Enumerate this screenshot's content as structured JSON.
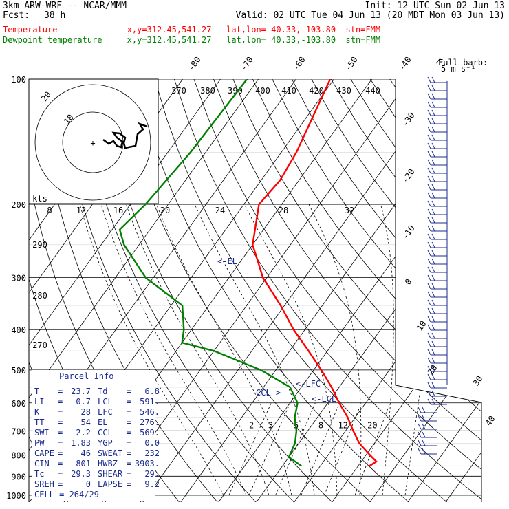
{
  "header": {
    "title": "3km ARW-WRF -- NCAR/MMM",
    "fcst_label": "Fcst:",
    "fcst_value": "38 h",
    "init": "Init: 12 UTC Sun 02 Jun 13",
    "valid": "Valid: 02 UTC Tue 04 Jun 13 (20 MDT Mon 03 Jun 13)",
    "temp_line": "Temperature              x,y=312.45,541.27   lat,lon= 40.33,-103.80  stn=FMM",
    "dew_line": "Dewpoint temperature     x,y=312.45,541.27   lat,lon= 40.33,-103.80  stn=FMM"
  },
  "colors": {
    "temperature": "#ff0000",
    "dewpoint": "#008000",
    "annotation": "#1b2b8f",
    "axis": "#000000"
  },
  "chart_data": {
    "type": "line",
    "title": "",
    "ylabel": "",
    "y_scale": "log-pressure",
    "pressure_ticks": [
      "100",
      "200",
      "300",
      "400",
      "500",
      "600",
      "700",
      "800",
      "900",
      "1000"
    ],
    "isotherm_labels": [
      "-80",
      "-70",
      "-60",
      "-50",
      "-40",
      "-30",
      "-20",
      "-10",
      "0",
      "10",
      "20",
      "30",
      "40"
    ],
    "theta_e_labels": [
      "370",
      "380",
      "390",
      "400",
      "410",
      "420",
      "430",
      "440"
    ],
    "theta_labels": [
      "290",
      "280",
      "270"
    ],
    "mixing_ratio_labels": [
      "2",
      "3",
      "5",
      "8",
      "12",
      "20"
    ],
    "series": [
      {
        "name": "Temperature",
        "color": "#ff0000",
        "points": [
          [
            100,
            -61
          ],
          [
            150,
            -56
          ],
          [
            175,
            -55
          ],
          [
            200,
            -56
          ],
          [
            250,
            -50
          ],
          [
            300,
            -41
          ],
          [
            350,
            -31
          ],
          [
            400,
            -23
          ],
          [
            450,
            -15
          ],
          [
            500,
            -8
          ],
          [
            550,
            -2
          ],
          [
            600,
            3
          ],
          [
            650,
            8
          ],
          [
            700,
            12
          ],
          [
            750,
            16
          ],
          [
            800,
            21
          ],
          [
            830,
            24
          ],
          [
            850,
            23
          ]
        ]
      },
      {
        "name": "Dewpoint temperature",
        "color": "#008000",
        "points": [
          [
            100,
            -83
          ],
          [
            150,
            -84
          ],
          [
            200,
            -86
          ],
          [
            230,
            -88
          ],
          [
            250,
            -84
          ],
          [
            300,
            -72
          ],
          [
            350,
            -57
          ],
          [
            400,
            -52
          ],
          [
            430,
            -50
          ],
          [
            450,
            -40
          ],
          [
            500,
            -24
          ],
          [
            550,
            -13
          ],
          [
            600,
            -8
          ],
          [
            650,
            -6
          ],
          [
            700,
            -3
          ],
          [
            750,
            -1
          ],
          [
            810,
            0
          ],
          [
            850,
            5
          ]
        ]
      }
    ],
    "annotations": [
      "<-EL",
      "<-LFC",
      "<-LCL",
      "CCL->",
      "kts",
      "Full barb:",
      "5 m s⁻¹"
    ],
    "hodograph": {
      "speed_labels": [
        "8",
        "12",
        "16",
        "20",
        "24",
        "28",
        "32"
      ],
      "ring_labels": [
        "10",
        "20"
      ],
      "unit": "kts"
    }
  },
  "parcel_info": {
    "title": "Parcel Info",
    "rows": [
      {
        "k1": "T",
        "v1": "23.7",
        "k2": "Td",
        "v2": "6.8"
      },
      {
        "k1": "LI",
        "v1": "-0.7",
        "k2": "LCL",
        "v2": "591."
      },
      {
        "k1": "K",
        "v1": "28",
        "k2": "LFC",
        "v2": "546."
      },
      {
        "k1": "TT",
        "v1": "54",
        "k2": "EL",
        "v2": "276."
      },
      {
        "k1": "SWI",
        "v1": "-2.2",
        "k2": "CCL",
        "v2": "569."
      },
      {
        "k1": "PW",
        "v1": "1.83",
        "k2": "YGP",
        "v2": "0.0"
      },
      {
        "k1": "CAPE",
        "v1": "46",
        "k2": "SWEAT",
        "v2": "232"
      },
      {
        "k1": "CIN",
        "v1": "-801",
        "k2": "HWBZ",
        "v2": "3903."
      },
      {
        "k1": "Tc",
        "v1": "29.3",
        "k2": "SHEAR",
        "v2": "29."
      },
      {
        "k1": "SREH",
        "v1": "0",
        "k2": "LAPSE",
        "v2": "9.2"
      }
    ],
    "cell": "CELL = 264/29"
  }
}
